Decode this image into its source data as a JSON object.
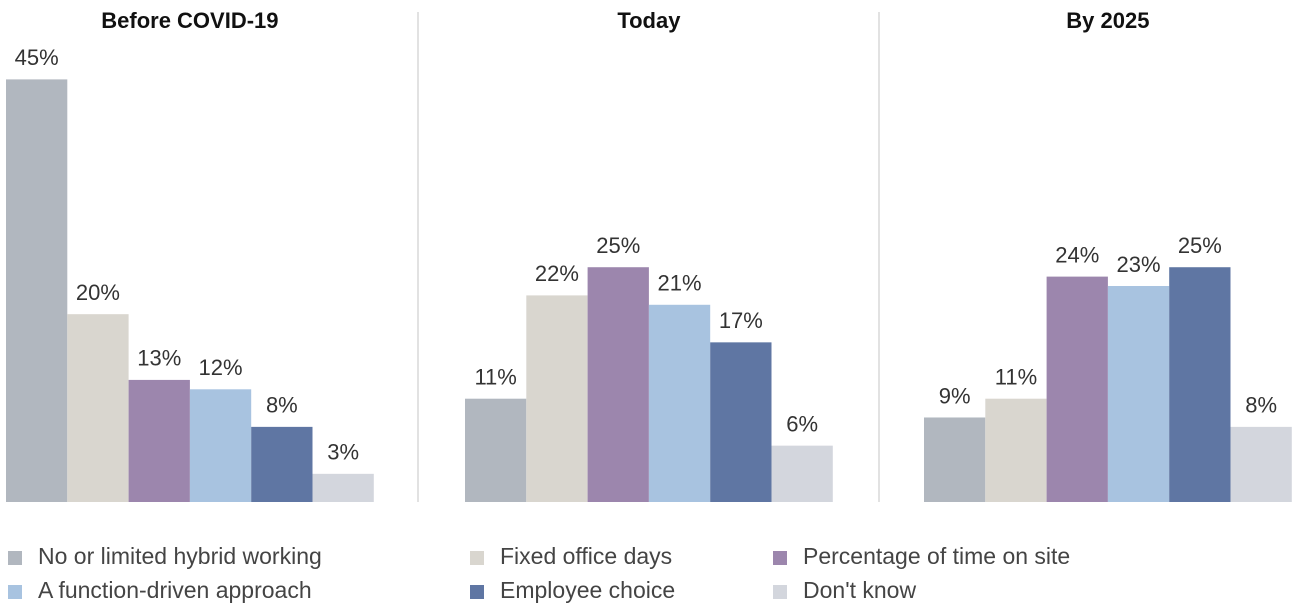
{
  "chart_data": {
    "type": "bar",
    "categories": [
      "Before COVID-19",
      "Today",
      "By 2025"
    ],
    "ylim": [
      0,
      46
    ],
    "series": [
      {
        "name": "No or limited hybrid working",
        "color": "#b1b7bf",
        "values": [
          45,
          11,
          9
        ],
        "value_labels": [
          "45%",
          "11%",
          "9%"
        ]
      },
      {
        "name": "Fixed office days",
        "color": "#d9d6cf",
        "values": [
          20,
          22,
          11
        ],
        "value_labels": [
          "20%",
          "22%",
          "11%"
        ]
      },
      {
        "name": "Percentage of time on site",
        "color": "#9c86ad",
        "values": [
          13,
          25,
          24
        ],
        "value_labels": [
          "13%",
          "25%",
          "24%"
        ]
      },
      {
        "name": "A function-driven approach",
        "color": "#a8c3e0",
        "values": [
          12,
          21,
          23
        ],
        "value_labels": [
          "12%",
          "21%",
          "23%"
        ]
      },
      {
        "name": "Employee choice",
        "color": "#5f76a3",
        "values": [
          8,
          17,
          25
        ],
        "value_labels": [
          "8%",
          "17%",
          "25%"
        ]
      },
      {
        "name": "Don't know",
        "color": "#d3d6dd",
        "values": [
          3,
          6,
          8
        ],
        "value_labels": [
          "3%",
          "6%",
          "8%"
        ]
      }
    ]
  }
}
